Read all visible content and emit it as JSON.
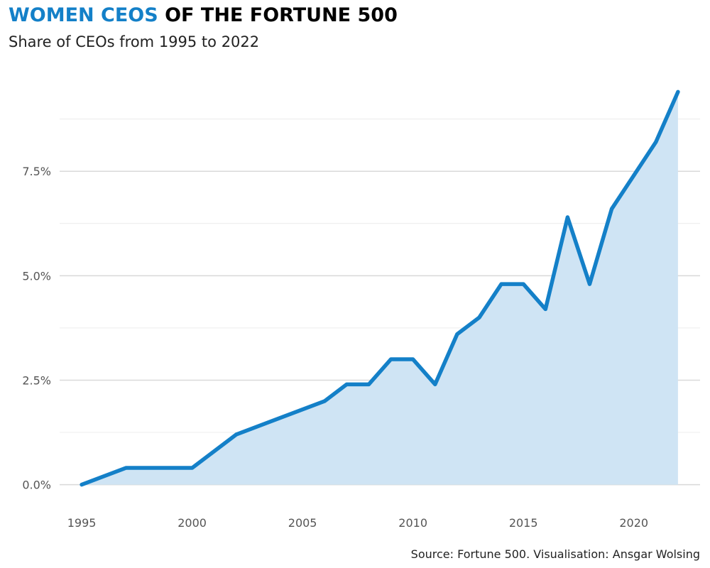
{
  "title": {
    "accent": "WOMEN CEOS",
    "rest": " OF THE FORTUNE 500"
  },
  "subtitle": "Share of CEOs from 1995 to 2022",
  "caption": "Source: Fortune 500. Visualisation: Ansgar Wolsing",
  "colors": {
    "accent": "#1480C8",
    "area_fill": "#CFE4F4",
    "grid_major": "#D9D9D9",
    "grid_minor": "#ECECEC"
  },
  "chart_data": {
    "type": "area",
    "title": "WOMEN CEOS OF THE FORTUNE 500",
    "subtitle": "Share of CEOs from 1995 to 2022",
    "xlabel": "",
    "ylabel": "",
    "x": [
      1995,
      1997,
      1998,
      1999,
      2000,
      2002,
      2006,
      2007,
      2008,
      2009,
      2010,
      2011,
      2012,
      2013,
      2014,
      2015,
      2016,
      2017,
      2018,
      2019,
      2020,
      2021,
      2022
    ],
    "series": [
      {
        "values": [
          0.0,
          0.4,
          0.4,
          0.4,
          0.4,
          1.2,
          2.0,
          2.4,
          2.4,
          3.0,
          3.0,
          2.4,
          3.6,
          4.0,
          4.8,
          4.8,
          4.2,
          6.4,
          4.8,
          6.6,
          7.4,
          8.2,
          9.4
        ]
      }
    ],
    "xlim": [
      1994,
      2023
    ],
    "ylim": [
      -0.5,
      9.9
    ],
    "x_ticks": [
      1995,
      2000,
      2005,
      2010,
      2015,
      2020
    ],
    "x_tick_labels": [
      "1995",
      "2000",
      "2005",
      "2010",
      "2015",
      "2020"
    ],
    "y_ticks": [
      0,
      2.5,
      5,
      7.5
    ],
    "y_tick_labels": [
      "0.0%",
      "2.5%",
      "5.0%",
      "7.5%"
    ],
    "y_minor_ticks": [
      1.25,
      3.75,
      6.25,
      8.75
    ],
    "grid": true,
    "legend": "none"
  }
}
